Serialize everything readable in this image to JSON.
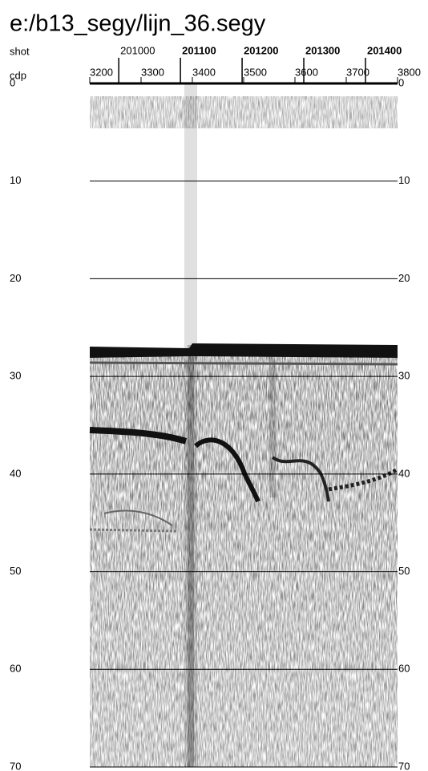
{
  "chart_data": {
    "type": "seismic",
    "title": "e:/b13_segy/lijn_36.segy",
    "x_axes": [
      {
        "label": "shot",
        "xlim": [
          200953,
          201452
        ],
        "xticks": [
          201000,
          201100,
          201200,
          201300,
          201400
        ]
      },
      {
        "label": "cdp",
        "xlim": [
          3200,
          3800
        ],
        "xticks": [
          3200,
          3300,
          3400,
          3500,
          3600,
          3700,
          3800
        ]
      }
    ],
    "ylim": [
      0,
      70
    ],
    "yticks": [
      0,
      10,
      20,
      30,
      40,
      50,
      60,
      70
    ],
    "grid": true
  }
}
